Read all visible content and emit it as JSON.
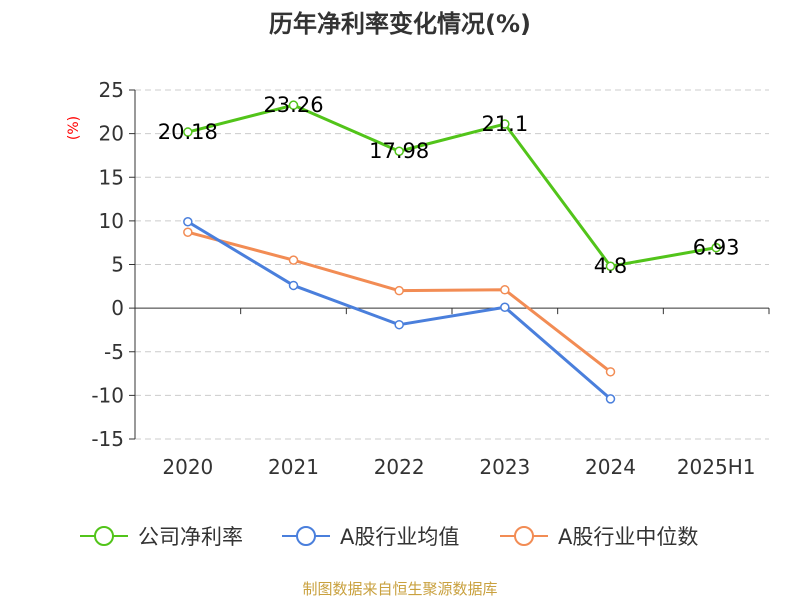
{
  "chart_data": {
    "type": "line",
    "title": "历年净利率变化情况(%)",
    "ylabel": "(%)",
    "xlabel": "",
    "categories": [
      "2020",
      "2021",
      "2022",
      "2023",
      "2024",
      "2025H1"
    ],
    "ylim": [
      -15,
      25
    ],
    "yticks": [
      25,
      20,
      15,
      10,
      5,
      0,
      -5,
      -10,
      -15
    ],
    "grid": true,
    "legend_position": "bottom",
    "series": [
      {
        "name": "公司净利率",
        "color": "#52c41a",
        "values": [
          20.18,
          23.26,
          17.98,
          21.1,
          4.8,
          6.93
        ],
        "labels": [
          "20.18",
          "23.26",
          "17.98",
          "21.1",
          "4.8",
          "6.93"
        ]
      },
      {
        "name": "A股行业均值",
        "color": "#4a7fdc",
        "values": [
          9.9,
          2.6,
          -1.9,
          0.1,
          -10.4,
          null
        ]
      },
      {
        "name": "A股行业中位数",
        "color": "#f28c54",
        "values": [
          8.7,
          5.5,
          2.0,
          2.1,
          -7.3,
          null
        ]
      }
    ]
  },
  "source": "制图数据来自恒生聚源数据库"
}
